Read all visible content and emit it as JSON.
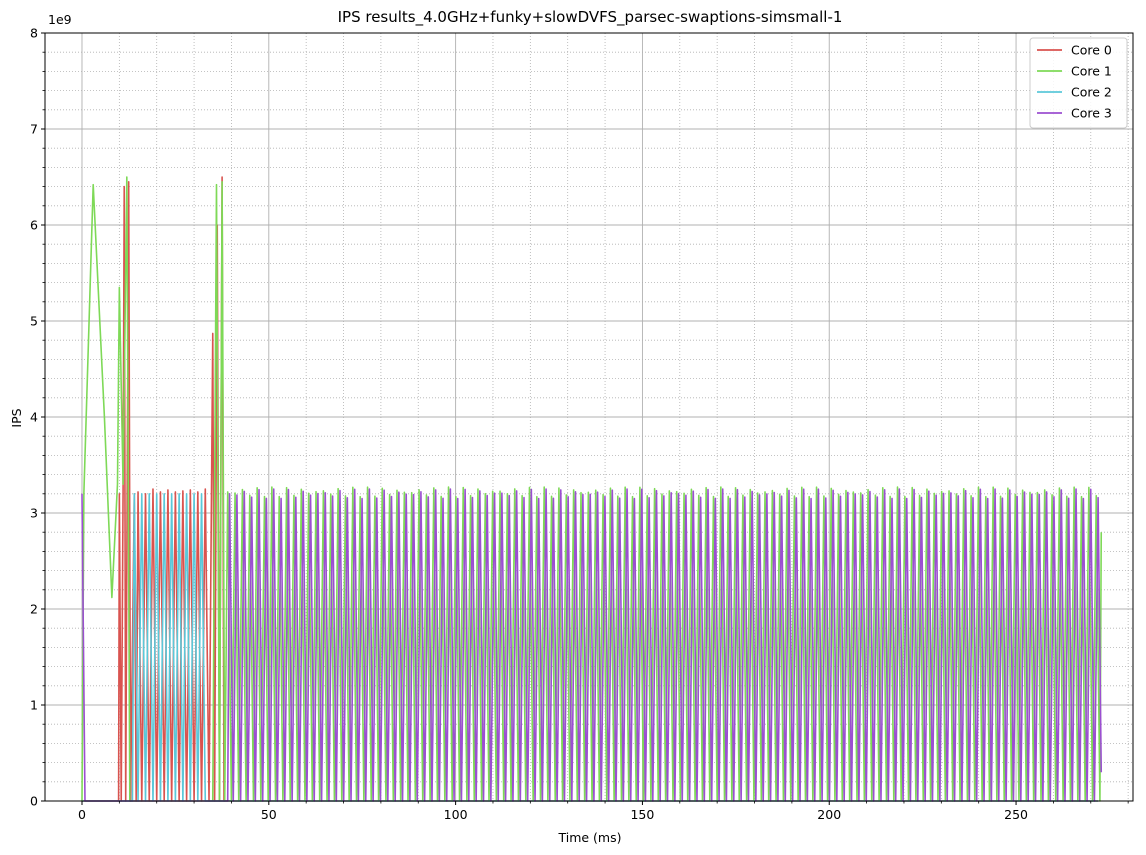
{
  "chart_data": {
    "type": "line",
    "title": "IPS results_4.0GHz+funky+slowDVFS_parsec-swaptions-simsmall-1",
    "xlabel": "Time (ms)",
    "ylabel": "IPS",
    "y_offset_label": "1e9",
    "xlim": [
      -9.9,
      281.3
    ],
    "ylim": [
      0,
      8
    ],
    "x_ticks": [
      0,
      50,
      100,
      150,
      200,
      250
    ],
    "x_tick_labels": [
      "0",
      "50",
      "100",
      "150",
      "200",
      "250"
    ],
    "y_ticks": [
      0,
      1,
      2,
      3,
      4,
      5,
      6,
      7,
      8
    ],
    "y_tick_labels": [
      "0",
      "1",
      "2",
      "3",
      "4",
      "5",
      "6",
      "7",
      "8"
    ],
    "grid": "major solid, minor dotted",
    "legend_position": "top-right",
    "y_unit_multiplier": 1000000000,
    "series": [
      {
        "name": "Core 0",
        "color": "#d9534f",
        "points": [
          [
            0,
            0
          ],
          [
            9.8,
            0
          ],
          [
            10,
            3.2
          ],
          [
            10.5,
            0
          ],
          [
            11,
            3.25
          ],
          [
            11.3,
            6.4
          ],
          [
            11.7,
            0
          ],
          [
            12.5,
            6.45
          ],
          [
            13,
            0
          ],
          [
            14,
            3.2
          ],
          [
            14.5,
            0
          ],
          [
            15,
            3.22
          ],
          [
            16,
            0
          ],
          [
            17,
            3.2
          ],
          [
            18,
            0
          ],
          [
            19,
            3.25
          ],
          [
            20,
            0
          ],
          [
            21,
            3.22
          ],
          [
            22,
            0
          ],
          [
            23,
            3.24
          ],
          [
            24,
            0
          ],
          [
            25,
            3.22
          ],
          [
            26,
            0
          ],
          [
            27,
            3.23
          ],
          [
            28,
            0
          ],
          [
            29,
            3.24
          ],
          [
            30,
            0
          ],
          [
            31,
            3.22
          ],
          [
            32,
            0
          ],
          [
            33,
            3.25
          ],
          [
            34,
            0
          ],
          [
            35,
            4.87
          ],
          [
            35.5,
            0
          ],
          [
            36.2,
            6.0
          ],
          [
            36.8,
            0
          ],
          [
            37.5,
            6.5
          ],
          [
            38,
            0
          ],
          [
            38.5,
            0
          ],
          [
            272,
            0
          ]
        ]
      },
      {
        "name": "Core 1",
        "color": "#7ed957",
        "points": [
          [
            0,
            0
          ],
          [
            0.5,
            3.2
          ],
          [
            3,
            6.42
          ],
          [
            6,
            4.0
          ],
          [
            8,
            2.12
          ],
          [
            9.5,
            3.3
          ],
          [
            10,
            5.35
          ],
          [
            11,
            3.3
          ],
          [
            12,
            6.5
          ],
          [
            12.8,
            0
          ],
          [
            13,
            0
          ],
          [
            38,
            0
          ],
          [
            35,
            0
          ],
          [
            36,
            6.42
          ],
          [
            36.8,
            0
          ],
          [
            37.5,
            6.45
          ],
          [
            38.2,
            0
          ],
          [
            39,
            3.27
          ],
          [
            272,
            3.27
          ],
          [
            272.8,
            2.8
          ]
        ],
        "oscillating_from_ms": 39,
        "oscillating_to_ms": 272.5,
        "oscillation_period_ms": 1.97,
        "oscillation_range": [
          0,
          3.27
        ]
      },
      {
        "name": "Core 2",
        "color": "#5bc8d9",
        "points": [
          [
            0,
            0
          ],
          [
            13.5,
            0
          ],
          [
            14,
            3.2
          ],
          [
            15,
            0
          ],
          [
            16,
            3.2
          ],
          [
            17,
            0
          ],
          [
            18,
            3.2
          ],
          [
            19,
            0
          ],
          [
            20,
            3.2
          ],
          [
            21,
            0
          ],
          [
            22,
            3.2
          ],
          [
            23,
            0
          ],
          [
            24,
            3.2
          ],
          [
            25,
            0
          ],
          [
            26,
            3.2
          ],
          [
            27,
            0
          ],
          [
            28,
            3.2
          ],
          [
            29,
            0
          ],
          [
            30,
            3.2
          ],
          [
            31,
            0
          ],
          [
            32,
            3.2
          ],
          [
            33,
            0
          ],
          [
            33.5,
            0
          ],
          [
            272,
            0
          ]
        ]
      },
      {
        "name": "Core 3",
        "color": "#9b4fd1",
        "points": [
          [
            0,
            3.2
          ],
          [
            0.8,
            0
          ],
          [
            39,
            0
          ],
          [
            39.5,
            3.25
          ],
          [
            272,
            3.25
          ],
          [
            272.8,
            0.3
          ]
        ],
        "oscillating_from_ms": 39.5,
        "oscillating_to_ms": 272.5,
        "oscillation_period_ms": 1.97,
        "oscillation_range": [
          0,
          3.25
        ]
      }
    ]
  }
}
